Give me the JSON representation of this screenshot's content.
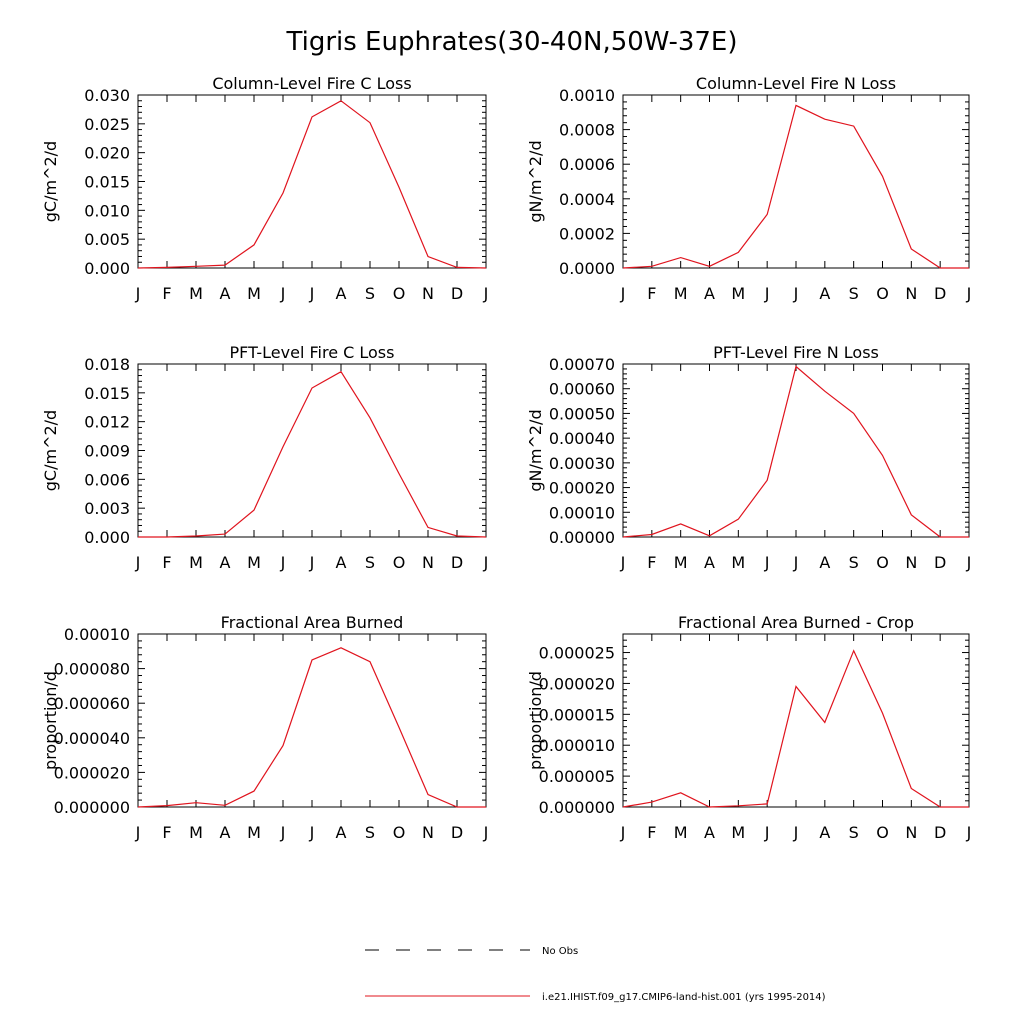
{
  "title": "Tigris Euphrates(30-40N,50W-37E)",
  "month_labels": [
    "J",
    "F",
    "M",
    "A",
    "M",
    "J",
    "J",
    "A",
    "S",
    "O",
    "N",
    "D",
    "J"
  ],
  "series_color": "#e0141e",
  "legend": [
    {
      "label": "No Obs",
      "style": "dashed",
      "color": "#000000"
    },
    {
      "label": "i.e21.IHIST.f09_g17.CMIP6-land-hist.001 (yrs 1995-2014)",
      "style": "solid",
      "color": "#e0141e"
    }
  ],
  "chart_data": [
    {
      "type": "line",
      "title": "Column-Level Fire C Loss",
      "ylabel": "gC/m^2/d",
      "ylim": [
        0,
        0.03
      ],
      "yticks": [
        "0.000",
        "0.005",
        "0.010",
        "0.015",
        "0.020",
        "0.025",
        "0.030"
      ],
      "x": [
        "J",
        "F",
        "M",
        "A",
        "M",
        "J",
        "J",
        "A",
        "S",
        "O",
        "N",
        "D",
        "J"
      ],
      "series": [
        {
          "values": [
            0.0,
            0.0001,
            0.0003,
            0.0005,
            0.004,
            0.013,
            0.0262,
            0.029,
            0.0252,
            0.014,
            0.002,
            0.0001,
            0.0
          ]
        }
      ]
    },
    {
      "type": "line",
      "title": "Column-Level Fire N Loss",
      "ylabel": "gN/m^2/d",
      "ylim": [
        0,
        0.001
      ],
      "yticks": [
        "0.0000",
        "0.0002",
        "0.0004",
        "0.0006",
        "0.0008",
        "0.0010"
      ],
      "x": [
        "J",
        "F",
        "M",
        "A",
        "M",
        "J",
        "J",
        "A",
        "S",
        "O",
        "N",
        "D",
        "J"
      ],
      "series": [
        {
          "values": [
            0.0,
            1e-05,
            6e-05,
            1e-05,
            9e-05,
            0.00031,
            0.00094,
            0.00086,
            0.00082,
            0.00053,
            0.00011,
            0.0,
            0.0
          ]
        }
      ]
    },
    {
      "type": "line",
      "title": "PFT-Level Fire C Loss",
      "ylabel": "gC/m^2/d",
      "ylim": [
        0,
        0.018
      ],
      "yticks": [
        "0.000",
        "0.003",
        "0.006",
        "0.009",
        "0.012",
        "0.015",
        "0.018"
      ],
      "x": [
        "J",
        "F",
        "M",
        "A",
        "M",
        "J",
        "J",
        "A",
        "S",
        "O",
        "N",
        "D",
        "J"
      ],
      "series": [
        {
          "values": [
            0.0,
            0.0,
            0.0001,
            0.0003,
            0.0028,
            0.0094,
            0.0155,
            0.0172,
            0.0124,
            0.0066,
            0.001,
            0.0001,
            0.0
          ]
        }
      ]
    },
    {
      "type": "line",
      "title": "PFT-Level Fire N Loss",
      "ylabel": "gN/m^2/d",
      "ylim": [
        0,
        0.0007
      ],
      "yticks": [
        "0.00000",
        "0.00010",
        "0.00020",
        "0.00030",
        "0.00040",
        "0.00050",
        "0.00060",
        "0.00070"
      ],
      "x": [
        "J",
        "F",
        "M",
        "A",
        "M",
        "J",
        "J",
        "A",
        "S",
        "O",
        "N",
        "D",
        "J"
      ],
      "series": [
        {
          "values": [
            0.0,
            1e-05,
            5.3e-05,
            5e-06,
            7.2e-05,
            0.00023,
            0.00069,
            0.00059,
            0.0005,
            0.00033,
            9e-05,
            0.0,
            0.0
          ]
        }
      ]
    },
    {
      "type": "line",
      "title": "Fractional Area Burned",
      "ylabel": "proportion/d",
      "ylim": [
        0,
        0.0001
      ],
      "yticks": [
        "0.000000",
        "0.000020",
        "0.000040",
        "0.000060",
        "0.000080",
        "0.00010"
      ],
      "x": [
        "J",
        "F",
        "M",
        "A",
        "M",
        "J",
        "J",
        "A",
        "S",
        "O",
        "N",
        "D",
        "J"
      ],
      "series": [
        {
          "values": [
            0.0,
            8e-07,
            2.5e-06,
            1e-06,
            9.2e-06,
            3.55e-05,
            8.5e-05,
            9.2e-05,
            8.4e-05,
            4.6e-05,
            7.2e-06,
            0.0,
            0.0
          ]
        }
      ]
    },
    {
      "type": "line",
      "title": "Fractional Area Burned - Crop",
      "ylabel": "proportion/d",
      "ylim": [
        0,
        2.8e-05
      ],
      "yticks": [
        "0.000000",
        "0.000005",
        "0.000010",
        "0.000015",
        "0.000020",
        "0.000025"
      ],
      "x": [
        "J",
        "F",
        "M",
        "A",
        "M",
        "J",
        "J",
        "A",
        "S",
        "O",
        "N",
        "D",
        "J"
      ],
      "series": [
        {
          "values": [
            0.0,
            8e-07,
            2.3e-06,
            0.0,
            2e-07,
            5e-07,
            1.95e-05,
            1.37e-05,
            2.53e-05,
            1.52e-05,
            3e-06,
            0.0,
            0.0
          ]
        }
      ]
    }
  ]
}
